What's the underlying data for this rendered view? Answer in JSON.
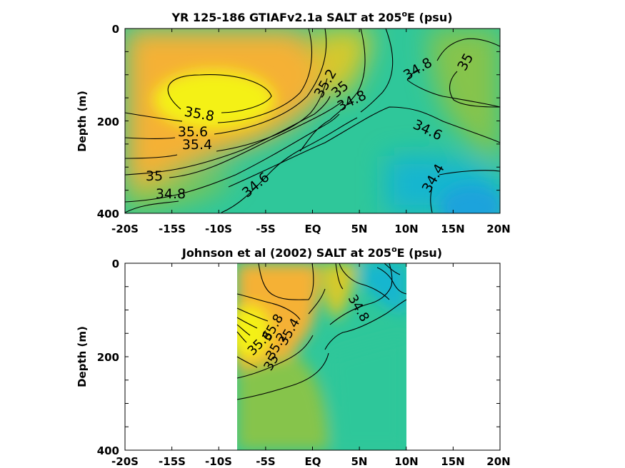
{
  "colors": {
    "high": "#f4f118",
    "orange": "#f5b135",
    "mid_yellow": "#d6c92b",
    "green": "#86c44b",
    "teal": "#2fc79a",
    "cyan": "#16b6cf",
    "low": "#1aa3dc"
  },
  "chart_data": [
    {
      "type": "heatmap",
      "title": "YR 125-186 GTIAFv2.1a SALT at 205°E (psu)",
      "title_main": "YR 125-186 GTIAFv2.1a SALT at 205",
      "title_sup": "o",
      "title_tail": "E (psu)",
      "ylabel": "Depth (m)",
      "xlim": [
        -20,
        20
      ],
      "ylim": [
        400,
        0
      ],
      "x_ticks": [
        -20,
        -15,
        -10,
        -5,
        0,
        5,
        10,
        15,
        20
      ],
      "x_tick_labels": [
        "-20S",
        "-15S",
        "-10S",
        "-5S",
        "EQ",
        "5N",
        "10N",
        "15N",
        "20N"
      ],
      "y_ticks": [
        0,
        200,
        400
      ],
      "y_tick_labels": [
        "0",
        "200",
        "400"
      ],
      "data_extent_lat": [
        -20,
        20
      ],
      "contour_labels": [
        {
          "text": "35.8",
          "lat": -12.5,
          "depth": 183
        },
        {
          "text": "35.6",
          "lat": -14.8,
          "depth": 222
        },
        {
          "text": "35.4",
          "lat": -12.3,
          "depth": 246
        },
        {
          "text": "35",
          "lat": -17.0,
          "depth": 316
        },
        {
          "text": "34.8",
          "lat": -15.3,
          "depth": 354
        },
        {
          "text": "34.6",
          "lat": -4.0,
          "depth": 336
        },
        {
          "text": "35.2",
          "lat": 1.6,
          "depth": 112
        },
        {
          "text": "35",
          "lat": 3.3,
          "depth": 130
        },
        {
          "text": "34.8",
          "lat": 4.8,
          "depth": 153
        },
        {
          "text": "34.8",
          "lat": 11.6,
          "depth": 80
        },
        {
          "text": "35",
          "lat": 16.3,
          "depth": 66
        },
        {
          "text": "34.6",
          "lat": 11.2,
          "depth": 213
        },
        {
          "text": "34.4",
          "lat": 13.2,
          "depth": 317
        }
      ]
    },
    {
      "type": "heatmap",
      "title": "Johnson et al (2002) SALT at 205°E (psu)",
      "title_main": "Johnson et al (2002) SALT at 205",
      "title_sup": "o",
      "title_tail": "E (psu)",
      "ylabel": "Depth (m)",
      "xlim": [
        -20,
        20
      ],
      "ylim": [
        400,
        0
      ],
      "x_ticks": [
        -20,
        -15,
        -10,
        -5,
        0,
        5,
        10,
        15,
        20
      ],
      "x_tick_labels": [
        "-20S",
        "-15S",
        "-10S",
        "-5S",
        "EQ",
        "5N",
        "10N",
        "15N",
        "20N"
      ],
      "y_ticks": [
        0,
        200,
        400
      ],
      "y_tick_labels": [
        "0",
        "200",
        "400"
      ],
      "data_extent_lat": [
        -8,
        10
      ],
      "contour_labels": [
        {
          "text": "34.8",
          "lat": 5.0,
          "depth": 100
        },
        {
          "text": "35.8",
          "lat": -4.5,
          "depth": 148
        },
        {
          "text": "35.6",
          "lat": -5.6,
          "depth": 161
        },
        {
          "text": "35.4",
          "lat": -2.2,
          "depth": 162
        },
        {
          "text": "35.2",
          "lat": -3.5,
          "depth": 182
        },
        {
          "text": "35",
          "lat": -4.3,
          "depth": 214
        }
      ]
    }
  ]
}
